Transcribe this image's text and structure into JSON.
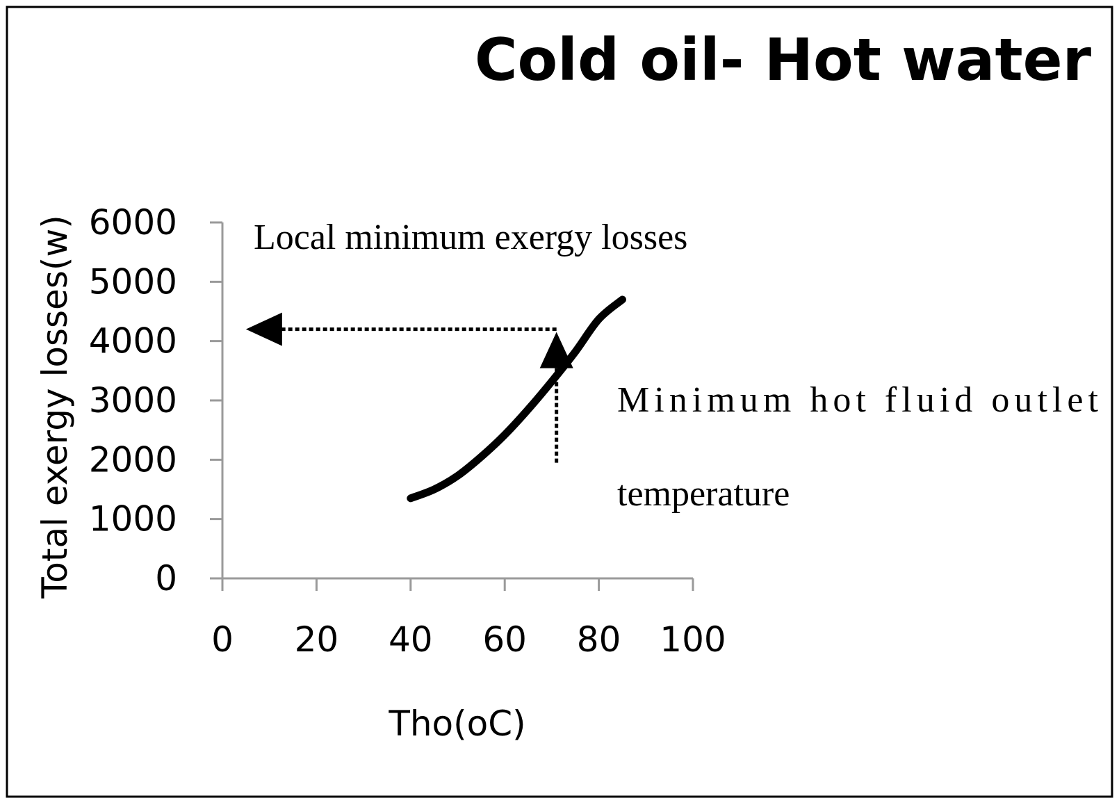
{
  "chart_data": {
    "type": "line",
    "title": "Cold oil- Hot water",
    "xlabel": "Tho(oC)",
    "ylabel": "Total exergy losses(w)",
    "xlim": [
      0,
      100
    ],
    "ylim": [
      0,
      6000
    ],
    "xticks": [
      0,
      20,
      40,
      60,
      80,
      100
    ],
    "yticks": [
      0,
      1000,
      2000,
      3000,
      4000,
      5000,
      6000
    ],
    "grid": false,
    "series": [
      {
        "name": "Total exergy losses",
        "color": "#000000",
        "x": [
          40,
          45,
          50,
          55,
          60,
          65,
          70,
          75,
          80,
          85
        ],
        "y": [
          1350,
          1500,
          1730,
          2050,
          2420,
          2850,
          3320,
          3820,
          4370,
          4700
        ]
      }
    ],
    "annotations": {
      "local_minimum": {
        "label": "Local minimum exergy losses",
        "x_from": 71,
        "x_to": 5,
        "y": 4200
      },
      "minimum_outlet": {
        "label_line1": "Minimum hot fluid outlet",
        "label_line2": "temperature",
        "x": 71,
        "y_from": 1950,
        "y_to": 4200
      }
    }
  }
}
